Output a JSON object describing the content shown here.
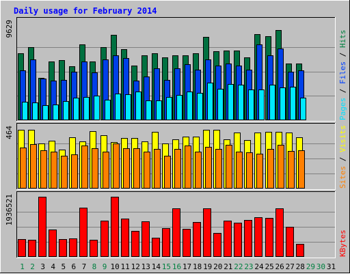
{
  "chart_data": {
    "type": "bar",
    "title": "Daily usage for February 2014",
    "days": [
      "1",
      "2",
      "3",
      "4",
      "5",
      "6",
      "7",
      "8",
      "9",
      "10",
      "11",
      "12",
      "13",
      "14",
      "15",
      "16",
      "17",
      "18",
      "19",
      "20",
      "21",
      "22",
      "23",
      "24",
      "25",
      "26",
      "27",
      "28",
      "29",
      "30",
      "31"
    ],
    "weekend_days": [
      1,
      2,
      8,
      9,
      15,
      16,
      22,
      23,
      29,
      30
    ],
    "panels": [
      {
        "id": "hits-files-pages",
        "ymax_label": "9629",
        "ymax": 9629,
        "legend": [
          {
            "name": "Pages",
            "color": "#00E0FF"
          },
          {
            "name": "Files",
            "color": "#0040FF"
          },
          {
            "name": "Hits",
            "color": "#008040"
          }
        ],
        "series": [
          {
            "name": "Hits",
            "color": "#007040",
            "values": [
              6600,
              7200,
              4200,
              5800,
              5900,
              5300,
              7500,
              5800,
              7200,
              8400,
              7000,
              5400,
              6400,
              6600,
              6200,
              6400,
              6400,
              6600,
              8200,
              6800,
              6900,
              6900,
              6200,
              8500,
              8300,
              8900,
              5600,
              5600,
              0,
              0,
              0
            ]
          },
          {
            "name": "Files",
            "color": "#0040E8",
            "values": [
              4900,
              6000,
              4100,
              3900,
              4000,
              4800,
              5800,
              4700,
              6000,
              6400,
              6100,
              3900,
              4300,
              5100,
              4000,
              5100,
              5500,
              5000,
              6000,
              5400,
              5600,
              5400,
              5000,
              7500,
              6400,
              7100,
              4800,
              4900,
              0,
              0,
              0
            ]
          },
          {
            "name": "Pages",
            "color": "#00E8FF",
            "values": [
              1800,
              1750,
              1500,
              1550,
              1900,
              2250,
              2300,
              2450,
              2000,
              2650,
              2550,
              2800,
              1950,
              1950,
              2300,
              2500,
              2800,
              2700,
              3700,
              3100,
              3550,
              3500,
              3000,
              3050,
              3500,
              3200,
              3300,
              2250,
              0,
              0,
              0
            ]
          }
        ]
      },
      {
        "id": "visits-sites",
        "ymax_label": "464",
        "ymax": 464,
        "legend": [
          {
            "name": "Sites",
            "color": "#FF8000"
          },
          {
            "name": "Visits",
            "color": "#FFFF00"
          }
        ],
        "series": [
          {
            "name": "Visits",
            "color": "#FFFF00",
            "values": [
              455,
              455,
              350,
              370,
              300,
              395,
              365,
              445,
              410,
              360,
              390,
              390,
              365,
              435,
              350,
              380,
              400,
              400,
              455,
              455,
              380,
              430,
              375,
              430,
              435,
              435,
              430,
              395,
              0,
              0,
              0
            ]
          },
          {
            "name": "Sites",
            "color": "#FF8000",
            "values": [
              315,
              345,
              295,
              285,
              255,
              265,
              330,
              310,
              285,
              350,
              310,
              310,
              285,
              305,
              255,
              305,
              330,
              285,
              320,
              305,
              335,
              285,
              280,
              270,
              305,
              340,
              290,
              295,
              0,
              0,
              0
            ]
          }
        ]
      },
      {
        "id": "kbytes",
        "ymax_label": "1936521",
        "ymax": 1936521,
        "legend": [
          {
            "name": "KBytes",
            "color": "#FF0000"
          }
        ],
        "series": [
          {
            "name": "KBytes",
            "color": "#FF0000",
            "values": [
              580000,
              540000,
              1936521,
              870000,
              580000,
              600000,
              1580000,
              560000,
              1160000,
              1936521,
              1240000,
              840000,
              1140000,
              610000,
              920000,
              1570000,
              900000,
              1120000,
              1560000,
              770000,
              1160000,
              1100000,
              1180000,
              1280000,
              1250000,
              1560000,
              960000,
              410000,
              0,
              0,
              0
            ]
          }
        ]
      }
    ],
    "legend_separator": "/"
  }
}
